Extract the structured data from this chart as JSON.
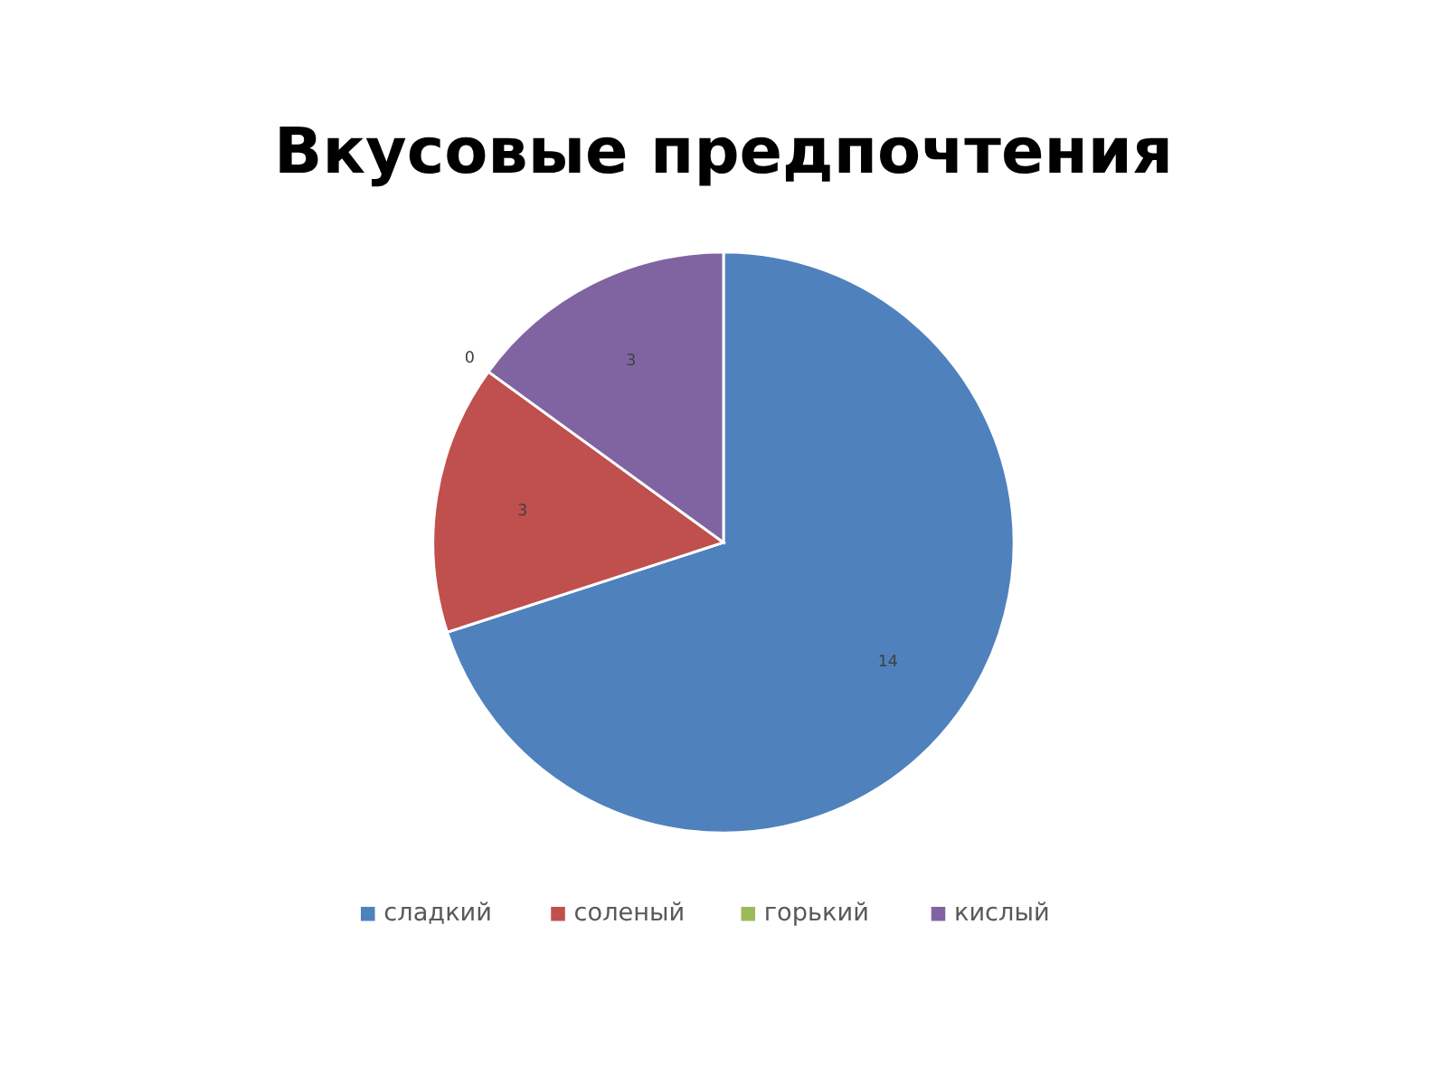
{
  "chart_data": {
    "type": "pie",
    "title": "Вкусовые предпочтения",
    "categories": [
      "сладкий",
      "соленый",
      "горький",
      "кислый"
    ],
    "values": [
      14,
      3,
      0,
      3
    ],
    "value_labels": [
      "14",
      "3",
      "0",
      "3"
    ],
    "colors": [
      "#4f81bd",
      "#c0504d",
      "#9bbb59",
      "#8064a2"
    ],
    "legend": "bottom"
  }
}
